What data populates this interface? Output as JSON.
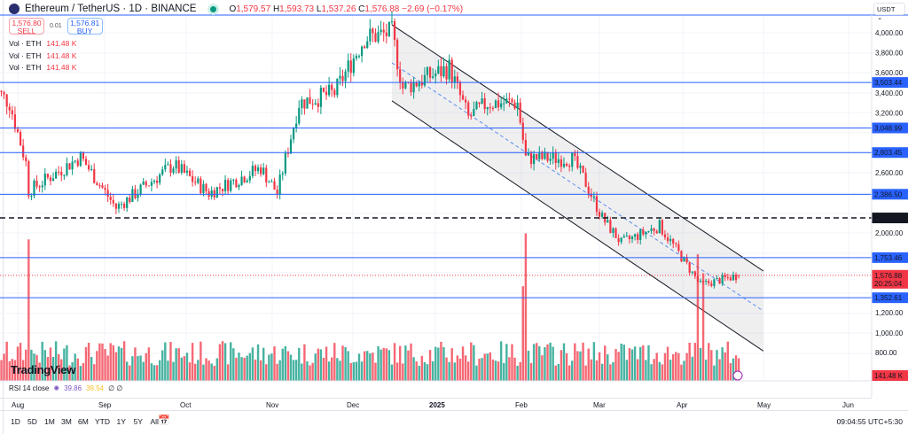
{
  "header": {
    "symbol": "Ethereum / TetherUS · 1D · BINANCE",
    "o_label": "O",
    "open": "1,579.57",
    "h_label": "H",
    "high": "1,593.73",
    "l_label": "L",
    "low": "1,537.26",
    "c_label": "C",
    "close": "1,576.88",
    "change": "−2.69 (−0.17%)"
  },
  "trade": {
    "sell_price": "1,576.80",
    "sell_label": "SELL",
    "spread": "0.01",
    "buy_price": "1,576.81",
    "buy_label": "BUY"
  },
  "volume_legends": [
    {
      "label": "Vol · ETH",
      "value": "141.48 K"
    },
    {
      "label": "Vol · ETH",
      "value": "141.48 K"
    },
    {
      "label": "Vol · ETH",
      "value": "141.48 K"
    }
  ],
  "currency": "USDT ⌄",
  "rsi": {
    "label": "RSI 14 close",
    "v1": "39.86",
    "v2": "39.54",
    "v3": "∅ ∅"
  },
  "brand": "TradingView",
  "range_buttons": [
    "1D",
    "5D",
    "1M",
    "3M",
    "6M",
    "YTD",
    "1Y",
    "5Y",
    "All"
  ],
  "clock": "09:04:55 UTC+5:30",
  "colors": {
    "up": "#089981",
    "down": "#f23645",
    "level": "#2962ff",
    "channel": "#131722"
  },
  "chart_data": {
    "type": "candlestick",
    "title": "Ethereum / TetherUS · 1D · BINANCE",
    "x_ticks": [
      "Aug",
      "Sep",
      "Oct",
      "Nov",
      "Dec",
      "2025",
      "Feb",
      "Mar",
      "Apr",
      "May",
      "Jun"
    ],
    "y_ticks": [
      "4,000.00",
      "3,800.00",
      "3,600.00",
      "3,400.00",
      "3,200.00",
      "2,600.00",
      "2,000.00",
      "1,200.00",
      "1,000.00",
      "800.00"
    ],
    "ylim": [
      700,
      4150
    ],
    "close_path": [
      [
        "2024-07-23",
        3450
      ],
      [
        "2024-07-29",
        3300
      ],
      [
        "2024-08-04",
        2700
      ],
      [
        "2024-08-05",
        2420
      ],
      [
        "2024-08-24",
        2760
      ],
      [
        "2024-09-06",
        2250
      ],
      [
        "2024-09-27",
        2680
      ],
      [
        "2024-10-10",
        2400
      ],
      [
        "2024-10-29",
        2650
      ],
      [
        "2024-11-04",
        2400
      ],
      [
        "2024-11-12",
        3300
      ],
      [
        "2024-11-25",
        3400
      ],
      [
        "2024-12-06",
        3950
      ],
      [
        "2024-12-16",
        4000
      ],
      [
        "2024-12-20",
        3450
      ],
      [
        "2025-01-06",
        3650
      ],
      [
        "2025-01-13",
        3150
      ],
      [
        "2025-01-20",
        3300
      ],
      [
        "2025-01-31",
        3300
      ],
      [
        "2025-02-03",
        2750
      ],
      [
        "2025-02-20",
        2740
      ],
      [
        "2025-02-25",
        2500
      ],
      [
        "2025-03-03",
        2150
      ],
      [
        "2025-03-10",
        1900
      ],
      [
        "2025-03-24",
        2070
      ],
      [
        "2025-03-31",
        1800
      ],
      [
        "2025-04-08",
        1480
      ],
      [
        "2025-04-22",
        1576.88
      ]
    ],
    "levels": [
      {
        "value": 3503.44,
        "label": "3,503.44"
      },
      {
        "value": 3048.99,
        "label": "3,048.99"
      },
      {
        "value": 2803.45,
        "label": "2,803.45"
      },
      {
        "value": 2386.5,
        "label": "2,386.50"
      },
      {
        "value": 1753.46,
        "label": "1,753.46"
      },
      {
        "value": 1352.61,
        "label": "1,352.61"
      }
    ],
    "key_level": {
      "value": 2150.04,
      "label": "2,150.04"
    },
    "last_price": {
      "value": 1576.88,
      "label": "1,576.88",
      "countdown": "20:25:04"
    },
    "last_volume": "141.48 K",
    "channel": {
      "start": "2024-12-16",
      "end": "2025-05-01",
      "upper": [
        4080,
        1620
      ],
      "lower": [
        3320,
        820
      ]
    }
  }
}
